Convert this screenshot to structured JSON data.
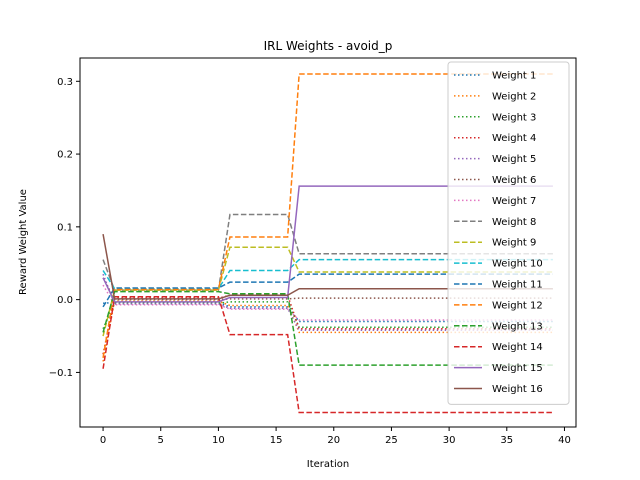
{
  "chart_data": {
    "type": "line",
    "title": "IRL Weights - avoid_p",
    "xlabel": "Iteration",
    "ylabel": "Reward Weight Value",
    "xlim": [
      -2,
      41
    ],
    "ylim": [
      -0.175,
      0.332
    ],
    "xticks": [
      0,
      5,
      10,
      15,
      20,
      25,
      30,
      35,
      40
    ],
    "yticks": [
      -0.1,
      0.0,
      0.1,
      0.2,
      0.3
    ],
    "ytick_labels": [
      "−0.1",
      "0.0",
      "0.1",
      "0.2",
      "0.3"
    ],
    "grid": false,
    "legend_position": "top-right",
    "x_start": 0,
    "x_end": 39,
    "series": [
      {
        "name": "Weight 1",
        "color": "#1f77b4",
        "style": "dotted",
        "points": [
          [
            0,
            -0.005
          ],
          [
            1,
            -0.004
          ],
          [
            10,
            -0.004
          ],
          [
            11,
            -0.01
          ],
          [
            16,
            -0.01
          ],
          [
            17,
            -0.03
          ],
          [
            39,
            -0.03
          ]
        ]
      },
      {
        "name": "Weight 2",
        "color": "#ff7f0e",
        "style": "dotted",
        "points": [
          [
            0,
            -0.085
          ],
          [
            1,
            -0.002
          ],
          [
            10,
            -0.002
          ],
          [
            11,
            -0.008
          ],
          [
            16,
            -0.008
          ],
          [
            17,
            -0.045
          ],
          [
            39,
            -0.045
          ]
        ]
      },
      {
        "name": "Weight 3",
        "color": "#2ca02c",
        "style": "dotted",
        "points": [
          [
            0,
            -0.04
          ],
          [
            1,
            -0.005
          ],
          [
            10,
            -0.005
          ],
          [
            11,
            -0.003
          ],
          [
            16,
            -0.003
          ],
          [
            17,
            -0.038
          ],
          [
            39,
            -0.038
          ]
        ]
      },
      {
        "name": "Weight 4",
        "color": "#d62728",
        "style": "dotted",
        "points": [
          [
            0,
            -0.075
          ],
          [
            1,
            0.002
          ],
          [
            10,
            0.002
          ],
          [
            11,
            0.006
          ],
          [
            16,
            0.006
          ],
          [
            17,
            -0.04
          ],
          [
            39,
            -0.04
          ]
        ]
      },
      {
        "name": "Weight 5",
        "color": "#9467bd",
        "style": "dotted",
        "points": [
          [
            0,
            0.035
          ],
          [
            1,
            -0.006
          ],
          [
            10,
            -0.006
          ],
          [
            11,
            -0.012
          ],
          [
            16,
            -0.012
          ],
          [
            17,
            -0.042
          ],
          [
            39,
            -0.042
          ]
        ]
      },
      {
        "name": "Weight 6",
        "color": "#8c564b",
        "style": "dotted",
        "points": [
          [
            0,
            0.03
          ],
          [
            1,
            0.0
          ],
          [
            10,
            0.0
          ],
          [
            11,
            0.001
          ],
          [
            16,
            0.001
          ],
          [
            17,
            0.002
          ],
          [
            39,
            0.002
          ]
        ]
      },
      {
        "name": "Weight 7",
        "color": "#e377c2",
        "style": "dotted",
        "points": [
          [
            0,
            0.02
          ],
          [
            1,
            -0.007
          ],
          [
            10,
            -0.007
          ],
          [
            11,
            -0.013
          ],
          [
            16,
            -0.013
          ],
          [
            17,
            -0.028
          ],
          [
            39,
            -0.028
          ]
        ]
      },
      {
        "name": "Weight 8",
        "color": "#7f7f7f",
        "style": "dashed",
        "points": [
          [
            0,
            0.055
          ],
          [
            1,
            0.013
          ],
          [
            10,
            0.013
          ],
          [
            11,
            0.117
          ],
          [
            16,
            0.117
          ],
          [
            17,
            0.063
          ],
          [
            39,
            0.063
          ]
        ]
      },
      {
        "name": "Weight 9",
        "color": "#bcbd22",
        "style": "dashed",
        "points": [
          [
            0,
            -0.05
          ],
          [
            1,
            0.013
          ],
          [
            10,
            0.013
          ],
          [
            11,
            0.072
          ],
          [
            16,
            0.072
          ],
          [
            17,
            0.038
          ],
          [
            39,
            0.038
          ]
        ]
      },
      {
        "name": "Weight 10",
        "color": "#17becf",
        "style": "dashed",
        "points": [
          [
            0,
            0.04
          ],
          [
            1,
            0.015
          ],
          [
            10,
            0.015
          ],
          [
            11,
            0.04
          ],
          [
            16,
            0.04
          ],
          [
            17,
            0.055
          ],
          [
            39,
            0.055
          ]
        ]
      },
      {
        "name": "Weight 11",
        "color": "#1f77b4",
        "style": "dashed",
        "points": [
          [
            0,
            -0.01
          ],
          [
            1,
            0.016
          ],
          [
            10,
            0.016
          ],
          [
            11,
            0.024
          ],
          [
            16,
            0.024
          ],
          [
            17,
            0.035
          ],
          [
            39,
            0.035
          ]
        ]
      },
      {
        "name": "Weight 12",
        "color": "#ff7f0e",
        "style": "dashed",
        "points": [
          [
            0,
            -0.08
          ],
          [
            1,
            0.014
          ],
          [
            10,
            0.014
          ],
          [
            11,
            0.086
          ],
          [
            16,
            0.086
          ],
          [
            17,
            0.31
          ],
          [
            39,
            0.31
          ]
        ]
      },
      {
        "name": "Weight 13",
        "color": "#2ca02c",
        "style": "dashed",
        "points": [
          [
            0,
            -0.045
          ],
          [
            1,
            0.011
          ],
          [
            10,
            0.011
          ],
          [
            11,
            0.008
          ],
          [
            16,
            0.008
          ],
          [
            17,
            -0.09
          ],
          [
            39,
            -0.09
          ]
        ]
      },
      {
        "name": "Weight 14",
        "color": "#d62728",
        "style": "dashed",
        "points": [
          [
            0,
            -0.095
          ],
          [
            1,
            0.004
          ],
          [
            10,
            0.004
          ],
          [
            11,
            -0.048
          ],
          [
            16,
            -0.048
          ],
          [
            17,
            -0.155
          ],
          [
            39,
            -0.155
          ]
        ]
      },
      {
        "name": "Weight 15",
        "color": "#9467bd",
        "style": "solid",
        "points": [
          [
            0,
            0.03
          ],
          [
            1,
            -0.003
          ],
          [
            10,
            -0.003
          ],
          [
            11,
            0.003
          ],
          [
            16,
            0.003
          ],
          [
            17,
            0.156
          ],
          [
            39,
            0.156
          ]
        ]
      },
      {
        "name": "Weight 16",
        "color": "#8c564b",
        "style": "solid",
        "points": [
          [
            0,
            0.09
          ],
          [
            1,
            0.001
          ],
          [
            10,
            0.001
          ],
          [
            11,
            0.006
          ],
          [
            16,
            0.006
          ],
          [
            17,
            0.015
          ],
          [
            39,
            0.015
          ]
        ]
      }
    ]
  }
}
